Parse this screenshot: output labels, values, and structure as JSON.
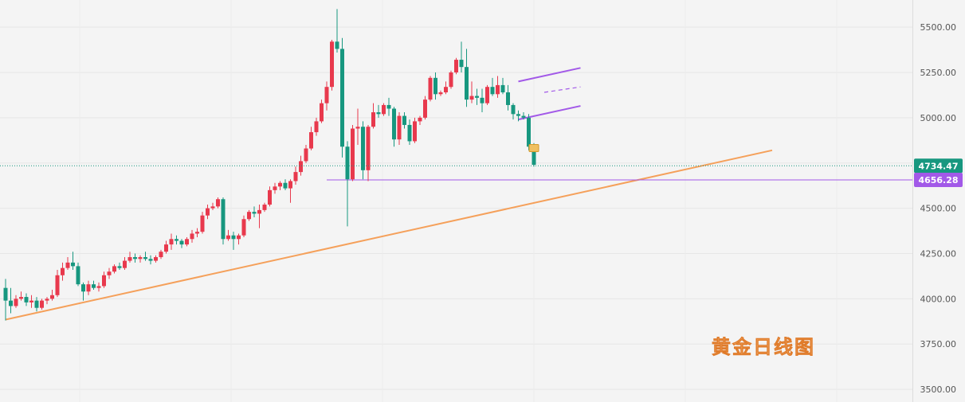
{
  "watermark": "黄金日线图",
  "colors": {
    "background": "#f4f4f4",
    "up": "#e8394d",
    "down": "#17977f",
    "trendline": "#f5a05a",
    "channel": "#a259e8",
    "support": "#a259e8",
    "last_price_tag": "#17977f",
    "support_tag": "#a259e8",
    "grid": "#e6e6e6"
  },
  "chart_data": {
    "type": "candlestick",
    "title": "",
    "xlabel": "",
    "ylabel": "",
    "y_axis_position": "right",
    "ylim": [
      3430,
      5650
    ],
    "yticks": [
      3500,
      3750,
      4000,
      4250,
      4500,
      4750,
      5000,
      5250,
      5500
    ],
    "ytick_labels": [
      "3500.00",
      "3750.00",
      "4000.00",
      "4250.00",
      "4500.00",
      "4750.00",
      "5000.00",
      "5250.00",
      "5500.00"
    ],
    "last_price": 4734.47,
    "last_price_label": "4734.47",
    "support_level": 4656.28,
    "support_label": "4656.28",
    "candles_ohlc": [
      [
        4060,
        4110,
        3880,
        3990
      ],
      [
        3990,
        4060,
        3920,
        3960
      ],
      [
        3960,
        4020,
        3950,
        4000
      ],
      [
        4000,
        4040,
        3990,
        4010
      ],
      [
        4010,
        4030,
        3960,
        3980
      ],
      [
        3980,
        4020,
        3950,
        3990
      ],
      [
        3990,
        4010,
        3930,
        3950
      ],
      [
        3950,
        4000,
        3940,
        3990
      ],
      [
        3990,
        4010,
        3970,
        4000
      ],
      [
        4000,
        4050,
        3990,
        4020
      ],
      [
        4020,
        4160,
        4010,
        4130
      ],
      [
        4130,
        4200,
        4100,
        4170
      ],
      [
        4170,
        4230,
        4160,
        4200
      ],
      [
        4200,
        4260,
        4160,
        4180
      ],
      [
        4180,
        4200,
        4070,
        4080
      ],
      [
        4080,
        4090,
        3990,
        4040
      ],
      [
        4040,
        4100,
        4020,
        4080
      ],
      [
        4080,
        4100,
        4050,
        4060
      ],
      [
        4060,
        4090,
        4040,
        4070
      ],
      [
        4070,
        4150,
        4060,
        4130
      ],
      [
        4130,
        4170,
        4110,
        4150
      ],
      [
        4150,
        4190,
        4140,
        4180
      ],
      [
        4180,
        4200,
        4160,
        4170
      ],
      [
        4170,
        4230,
        4160,
        4210
      ],
      [
        4210,
        4260,
        4200,
        4230
      ],
      [
        4230,
        4250,
        4200,
        4220
      ],
      [
        4220,
        4240,
        4200,
        4230
      ],
      [
        4230,
        4260,
        4210,
        4220
      ],
      [
        4220,
        4240,
        4190,
        4210
      ],
      [
        4210,
        4240,
        4200,
        4230
      ],
      [
        4230,
        4270,
        4220,
        4260
      ],
      [
        4260,
        4320,
        4250,
        4300
      ],
      [
        4300,
        4360,
        4270,
        4330
      ],
      [
        4330,
        4350,
        4300,
        4320
      ],
      [
        4320,
        4330,
        4280,
        4300
      ],
      [
        4300,
        4340,
        4290,
        4330
      ],
      [
        4330,
        4380,
        4310,
        4360
      ],
      [
        4360,
        4390,
        4340,
        4370
      ],
      [
        4370,
        4480,
        4360,
        4460
      ],
      [
        4460,
        4520,
        4440,
        4500
      ],
      [
        4500,
        4530,
        4490,
        4510
      ],
      [
        4510,
        4560,
        4500,
        4550
      ],
      [
        4550,
        4560,
        4300,
        4330
      ],
      [
        4330,
        4380,
        4320,
        4350
      ],
      [
        4350,
        4370,
        4270,
        4330
      ],
      [
        4330,
        4360,
        4300,
        4350
      ],
      [
        4350,
        4460,
        4340,
        4440
      ],
      [
        4440,
        4490,
        4430,
        4480
      ],
      [
        4480,
        4510,
        4450,
        4470
      ],
      [
        4470,
        4520,
        4390,
        4490
      ],
      [
        4490,
        4530,
        4480,
        4520
      ],
      [
        4520,
        4620,
        4510,
        4600
      ],
      [
        4600,
        4640,
        4580,
        4620
      ],
      [
        4620,
        4650,
        4600,
        4640
      ],
      [
        4640,
        4660,
        4600,
        4610
      ],
      [
        4610,
        4660,
        4530,
        4650
      ],
      [
        4650,
        4730,
        4630,
        4700
      ],
      [
        4700,
        4790,
        4680,
        4760
      ],
      [
        4760,
        4850,
        4750,
        4830
      ],
      [
        4830,
        4950,
        4820,
        4920
      ],
      [
        4920,
        5000,
        4900,
        4980
      ],
      [
        4980,
        5100,
        4970,
        5080
      ],
      [
        5080,
        5200,
        5040,
        5170
      ],
      [
        5170,
        5430,
        5150,
        5420
      ],
      [
        5420,
        5600,
        5360,
        5380
      ],
      [
        5380,
        5440,
        4780,
        4840
      ],
      [
        4840,
        4870,
        4400,
        4660
      ],
      [
        4660,
        4960,
        4650,
        4940
      ],
      [
        4940,
        5050,
        4850,
        4950
      ],
      [
        4950,
        4980,
        4660,
        4710
      ],
      [
        4710,
        4960,
        4650,
        4950
      ],
      [
        4950,
        5080,
        4940,
        5030
      ],
      [
        5030,
        5070,
        5000,
        5020
      ],
      [
        5020,
        5080,
        5010,
        5070
      ],
      [
        5070,
        5110,
        5010,
        5050
      ],
      [
        5050,
        5060,
        4840,
        4880
      ],
      [
        4880,
        5030,
        4850,
        5010
      ],
      [
        5010,
        5030,
        4940,
        4960
      ],
      [
        4960,
        4990,
        4850,
        4870
      ],
      [
        4870,
        5000,
        4860,
        4980
      ],
      [
        4980,
        5010,
        4960,
        5000
      ],
      [
        5000,
        5120,
        4990,
        5100
      ],
      [
        5100,
        5230,
        5090,
        5220
      ],
      [
        5220,
        5250,
        5100,
        5130
      ],
      [
        5130,
        5150,
        5120,
        5140
      ],
      [
        5140,
        5200,
        5130,
        5170
      ],
      [
        5170,
        5260,
        5160,
        5250
      ],
      [
        5250,
        5330,
        5240,
        5320
      ],
      [
        5320,
        5420,
        5250,
        5280
      ],
      [
        5280,
        5380,
        5060,
        5100
      ],
      [
        5100,
        5200,
        5080,
        5120
      ],
      [
        5120,
        5160,
        5070,
        5110
      ],
      [
        5110,
        5160,
        5030,
        5080
      ],
      [
        5080,
        5180,
        5070,
        5170
      ],
      [
        5170,
        5220,
        5120,
        5130
      ],
      [
        5130,
        5230,
        5110,
        5180
      ],
      [
        5180,
        5220,
        5130,
        5140
      ],
      [
        5140,
        5180,
        5040,
        5070
      ],
      [
        5070,
        5080,
        4990,
        5020
      ],
      [
        5020,
        5040,
        4980,
        5010
      ],
      [
        5010,
        5030,
        4990,
        5000
      ],
      [
        5000,
        5020,
        4820,
        4840
      ],
      [
        4840,
        4860,
        4730,
        4740
      ]
    ],
    "annotations": [
      {
        "type": "trendline",
        "from": [
          0,
          3885
        ],
        "to": [
          148,
          4820
        ],
        "color": "trendline"
      },
      {
        "type": "horizontal",
        "price": 4656.28,
        "from_index": 62,
        "color": "support"
      },
      {
        "type": "channel_upper",
        "from": [
          99,
          5200
        ],
        "to": [
          111,
          5275
        ]
      },
      {
        "type": "channel_mid",
        "from": [
          104,
          5140
        ],
        "to": [
          111,
          5170
        ]
      },
      {
        "type": "channel_lower",
        "from": [
          99,
          4990
        ],
        "to": [
          111,
          5065
        ]
      }
    ]
  }
}
